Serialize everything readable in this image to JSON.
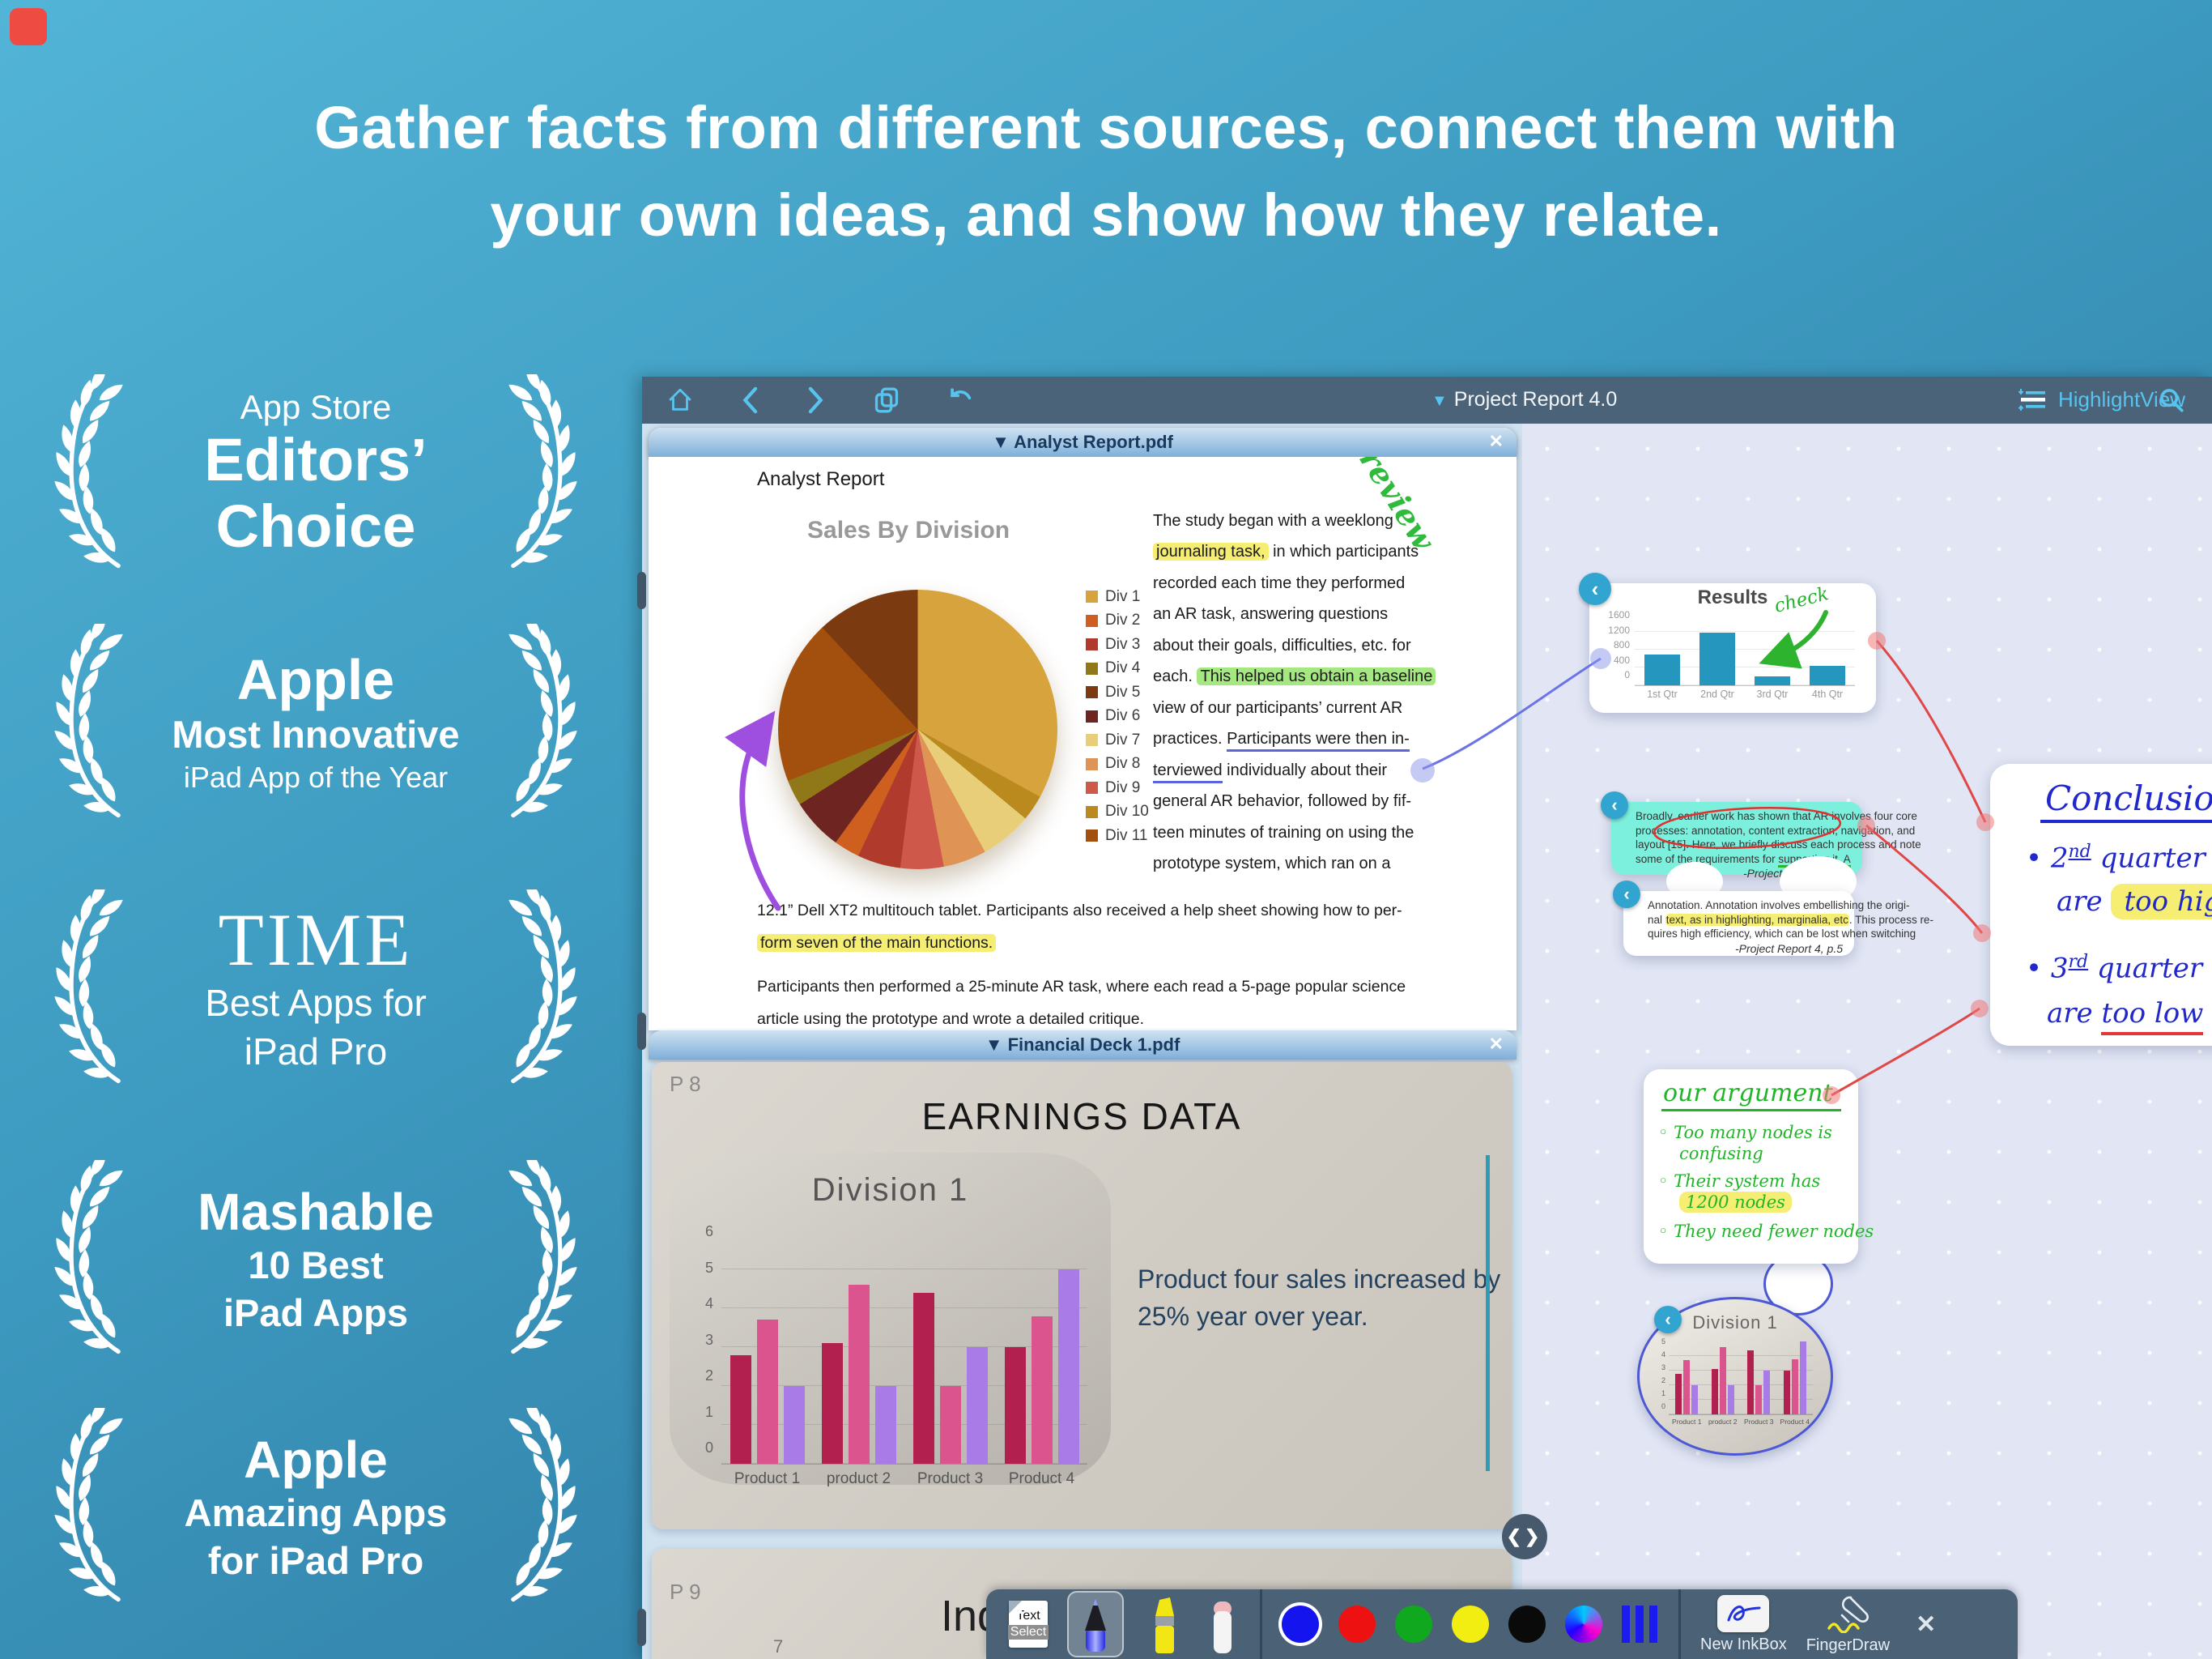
{
  "headline": {
    "line1": "Gather facts from different sources, connect them with",
    "line2": "your own ideas, and show how they relate."
  },
  "awards": [
    {
      "line1": "App Store",
      "line2": "Editors’",
      "line3": "Choice"
    },
    {
      "line1": "Apple",
      "line2": "Most Innovative",
      "line3": "iPad App of the Year"
    },
    {
      "line1": "TIME",
      "line2": "Best Apps for",
      "line3": "iPad Pro"
    },
    {
      "line1": "Mashable",
      "line2": "10 Best",
      "line3": "iPad Apps"
    },
    {
      "line1": "Apple",
      "line2": "Amazing Apps",
      "line3": "for iPad Pro"
    }
  ],
  "toolbar": {
    "project_caret": "▼",
    "project_title": "Project Report 4.0",
    "highlight_view_label": "HighlightView"
  },
  "doc1": {
    "tab_title": "▼ Analyst Report.pdf",
    "close": "✕",
    "heading": "Analyst Report",
    "pie_title": "Sales By Division",
    "review_note": "review",
    "col": {
      "l1": "The study began with a weeklong",
      "l2_hl": "journaling task,",
      "l2_post": " in which participants",
      "l3": "recorded each time they performed",
      "l4": "an AR task, answering questions",
      "l5": "about their goals, difficulties, etc. for",
      "l6_pre": "each. ",
      "l6_hl": "This helped us obtain a baseline",
      "l7": "view of our participants’ current AR",
      "l8_pre": "practices. ",
      "l8_ul": "Participants were then in-",
      "l9_ul": "terviewed",
      "l9_post": " individually about their",
      "l10": "general AR behavior, followed by fif-",
      "l11": "teen minutes of training on using the",
      "l12": "prototype system, which ran on a"
    },
    "bottom": {
      "b1": "12.1” Dell XT2 multitouch tablet. Participants also received a help sheet showing how to per-",
      "b2_hl": "form seven of the main functions.",
      "b3": "Participants then performed a 25-minute AR task, where each read a 5-page popular science",
      "b4": "article using the prototype and wrote a detailed critique."
    }
  },
  "doc2": {
    "tab_title": "▼ Financial Deck 1.pdf",
    "close": "✕",
    "page_label": "P 8",
    "slide_title": "EARNINGS DATA",
    "chart_title": "Division 1",
    "note_l1": "Product four sales increased by",
    "note_l2": "25% year over year."
  },
  "doc3": {
    "page_label": "P 9",
    "partial_title": "Ind",
    "partial_tick": "7"
  },
  "workspace": {
    "results_card": {
      "badge": "‹",
      "title": "Results",
      "check_note": "check"
    },
    "excerpt_teal": {
      "badge": "‹",
      "l1": "Broadly, earlier work has shown that AR involves four  core",
      "l2": "processes: annotation, content extraction, navigation,  and",
      "l3": "layout [15]. Here, we briefly discuss each process and  note",
      "l4_pre": "some of the requirements for ",
      "l4_ul": "supporting it. A",
      "attribution": "-Project Report 4, p.5"
    },
    "excerpt_white": {
      "badge": "‹",
      "l1": "Annotation. Annotation involves embellishing the origi-",
      "l2_pre": "nal ",
      "l2_hl": "text, as in highlighting, marginalia, etc",
      "l2_post": ". This process re-",
      "l3": "quires high efficiency, which can be lost when switching",
      "attribution": "-Project Report 4, p.5"
    },
    "conclusion": {
      "title": "Conclusion",
      "b1_num": "2",
      "b1_sup": "nd",
      "b1_rest": " quarter results",
      "b1_l2pre": "are ",
      "b1_hl": "too high",
      "b2_num": "3",
      "b2_sup": "rd",
      "b2_rest": " quarter results",
      "b2_l2pre": "are ",
      "b2_ul": "too low"
    },
    "argument": {
      "title": "our argument",
      "a1_l1": "Too many nodes is",
      "a1_l2": "confusing",
      "a2_l1": "Their system has",
      "a2_hl": "1200  nodes",
      "a3": "They need fewer nodes",
      "bullet": "◦"
    },
    "blob": {
      "badge": "‹",
      "title": "Division 1"
    }
  },
  "bottom_toolbar": {
    "text_select_top": "Text",
    "text_select_bottom": "Select",
    "new_inkbox_label": "New InkBox",
    "finger_draw_label": "FingerDraw",
    "close": "✕",
    "selected_color": 0,
    "colors": [
      {
        "name": "blue",
        "hex": "#1414ee"
      },
      {
        "name": "red",
        "hex": "#ee1111"
      },
      {
        "name": "green",
        "hex": "#0fa81e"
      },
      {
        "name": "yellow",
        "hex": "#f3ee12"
      },
      {
        "name": "black",
        "hex": "#0a0a0a"
      },
      {
        "name": "rainbow",
        "type": "rainbow"
      },
      {
        "name": "line-width",
        "type": "stripes"
      }
    ]
  },
  "chart_data": [
    {
      "id": "sales-pie",
      "type": "pie",
      "title": "Sales By Division",
      "legend": [
        {
          "label": "Div 1",
          "color": "#D6A33C"
        },
        {
          "label": "Div 2",
          "color": "#CE5F1F"
        },
        {
          "label": "Div 3",
          "color": "#B03A2C"
        },
        {
          "label": "Div 4",
          "color": "#907818"
        },
        {
          "label": "Div 5",
          "color": "#7C3A10"
        },
        {
          "label": "Div 6",
          "color": "#6E2420"
        },
        {
          "label": "Div 7",
          "color": "#E8CE78"
        },
        {
          "label": "Div 8",
          "color": "#DF9354"
        },
        {
          "label": "Div 9",
          "color": "#CE584A"
        },
        {
          "label": "Div 10",
          "color": "#BA8A1E"
        },
        {
          "label": "Div 11",
          "color": "#A3500E"
        }
      ],
      "slices": [
        {
          "label": "Div 1",
          "value": 33,
          "color": "#D6A33C"
        },
        {
          "label": "Div 10",
          "value": 3,
          "color": "#BA8A1E"
        },
        {
          "label": "Div 7",
          "value": 6,
          "color": "#E8CE78"
        },
        {
          "label": "Div 8",
          "value": 5,
          "color": "#DF9354"
        },
        {
          "label": "Div 9",
          "value": 5,
          "color": "#CE584A"
        },
        {
          "label": "Div 3",
          "value": 5,
          "color": "#B03A2C"
        },
        {
          "label": "Div 2",
          "value": 3,
          "color": "#CE5F1F"
        },
        {
          "label": "Div 6",
          "value": 6,
          "color": "#6E2420"
        },
        {
          "label": "Div 4",
          "value": 3,
          "color": "#907818"
        },
        {
          "label": "Div 11",
          "value": 19,
          "color": "#A3500E"
        },
        {
          "label": "Div 5",
          "value": 12,
          "color": "#7C3A10"
        }
      ]
    },
    {
      "id": "results",
      "type": "bar",
      "title": "Results",
      "categories": [
        "1st Qtr",
        "2nd Qtr",
        "3rd Qtr",
        "4th Qtr"
      ],
      "values": [
        700,
        1190,
        200,
        430
      ],
      "ylim": [
        0,
        1600
      ],
      "yticks": [
        0,
        400,
        800,
        1200,
        1600
      ],
      "bar_color": "#2596BE"
    },
    {
      "id": "division1",
      "type": "bar",
      "title": "Division 1",
      "categories": [
        "Product 1",
        "product 2",
        "Product 3",
        "Product 4"
      ],
      "series": [
        {
          "name": "series-1",
          "color": "#B22050",
          "values": [
            2.8,
            3.1,
            4.4,
            3.0
          ]
        },
        {
          "name": "series-2",
          "color": "#DB548D",
          "values": [
            3.7,
            4.6,
            2.0,
            3.8
          ]
        },
        {
          "name": "series-3",
          "color": "#A97BE6",
          "values": [
            2.0,
            2.0,
            3.0,
            5.0
          ]
        }
      ],
      "ylim": [
        0,
        6
      ],
      "yticks": [
        0,
        1,
        2,
        3,
        4,
        5,
        6
      ]
    },
    {
      "id": "division1-mini",
      "type": "bar",
      "title": "Division 1",
      "categories": [
        "Product 1",
        "product 2",
        "Product 3",
        "Product 4"
      ],
      "series": [
        {
          "name": "series-1",
          "color": "#B22050",
          "values": [
            2.8,
            3.1,
            4.4,
            3.0
          ]
        },
        {
          "name": "series-2",
          "color": "#DB548D",
          "values": [
            3.7,
            4.6,
            2.0,
            3.8
          ]
        },
        {
          "name": "series-3",
          "color": "#A97BE6",
          "values": [
            2.0,
            2.0,
            3.0,
            5.0
          ]
        }
      ],
      "ylim": [
        0,
        5
      ],
      "yticks": [
        0,
        1,
        2,
        3,
        4,
        5
      ]
    }
  ]
}
